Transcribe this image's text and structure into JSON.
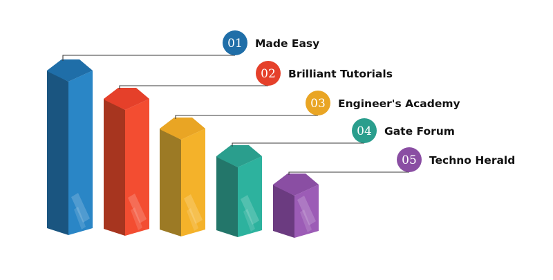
{
  "items": [
    {
      "num": "01",
      "label": "Made Easy",
      "color": "#1f6ea8",
      "dark": "#1a5580",
      "light": "#2a86c6"
    },
    {
      "num": "02",
      "label": "Brilliant Tutorials",
      "color": "#e5402a",
      "dark": "#a7351f",
      "light": "#f34d31"
    },
    {
      "num": "03",
      "label": "Engineer's Academy",
      "color": "#e9a524",
      "dark": "#9c7a25",
      "light": "#f4b22a"
    },
    {
      "num": "04",
      "label": "Gate Forum",
      "color": "#2a9e8d",
      "dark": "#23766a",
      "light": "#2db29e"
    },
    {
      "num": "05",
      "label": "Techno Herald",
      "color": "#8a4ea3",
      "dark": "#6b3b80",
      "light": "#9c5cb6"
    }
  ]
}
